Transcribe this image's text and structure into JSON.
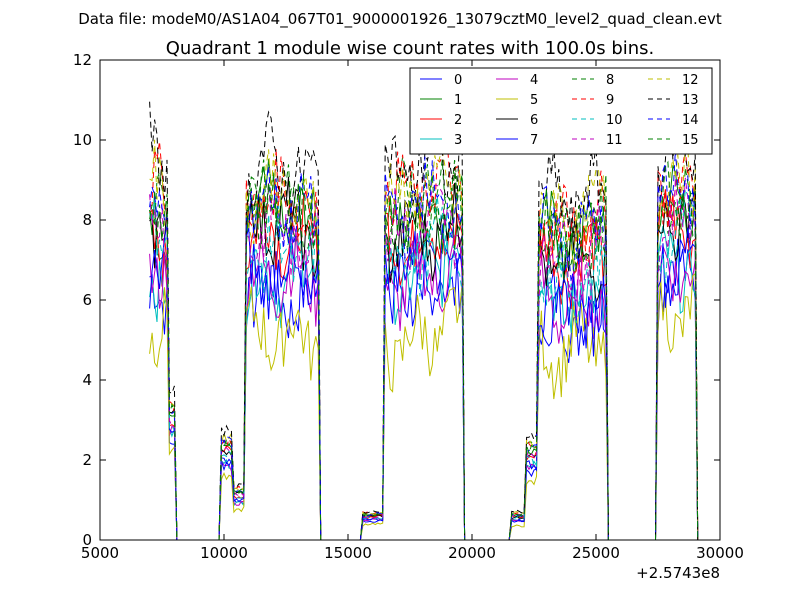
{
  "figure": {
    "supertitle": "Data file: modeM0/AS1A04_067T01_9000001926_13079cztM0_level2_quad_clean.evt"
  },
  "chart_data": {
    "type": "line",
    "title": "Quadrant 1 module wise count rates with 100.0s bins.",
    "xlabel": "",
    "ylabel": "",
    "x_offset_label": "+2.5743e8",
    "xlim": [
      5000,
      30000
    ],
    "ylim": [
      0,
      12
    ],
    "x_ticks": [
      5000,
      10000,
      15000,
      20000,
      25000,
      30000
    ],
    "x_tick_labels": [
      "5000",
      "10000",
      "15000",
      "20000",
      "25000",
      "30000"
    ],
    "y_ticks": [
      0,
      2,
      4,
      6,
      8,
      10,
      12
    ],
    "y_tick_labels": [
      "0",
      "2",
      "4",
      "6",
      "8",
      "10",
      "12"
    ],
    "grid": false,
    "legend_location": "upper right",
    "legend_columns": 4,
    "approximate": true,
    "series": [
      {
        "name": "0",
        "color": "#0000ff",
        "dash": "solid",
        "base": [
          6.1,
          6.6,
          6.2,
          5.8,
          6.3,
          6.7,
          6.0,
          5.5,
          6.2,
          6.9
        ]
      },
      {
        "name": "1",
        "color": "#008000",
        "dash": "solid",
        "base": [
          8.1,
          7.6,
          8.3,
          7.5,
          7.9,
          8.2,
          7.7,
          7.4,
          8.0,
          8.6
        ]
      },
      {
        "name": "2",
        "color": "#ff0000",
        "dash": "solid",
        "base": [
          7.6,
          7.1,
          7.8,
          7.2,
          7.4,
          7.7,
          7.3,
          6.9,
          7.5,
          8.0
        ]
      },
      {
        "name": "3",
        "color": "#00bfbf",
        "dash": "solid",
        "base": [
          6.8,
          6.2,
          6.5,
          6.8,
          6.4,
          7.2,
          6.6,
          5.9,
          6.6,
          6.9
        ]
      },
      {
        "name": "4",
        "color": "#bf00bf",
        "dash": "solid",
        "base": [
          7.0,
          6.0,
          6.7,
          6.4,
          6.3,
          6.8,
          6.2,
          5.8,
          6.4,
          7.0
        ]
      },
      {
        "name": "5",
        "color": "#bfbf00",
        "dash": "solid",
        "base": [
          5.5,
          5.2,
          5.2,
          5.0,
          4.8,
          5.4,
          4.6,
          4.8,
          5.2,
          5.9
        ]
      },
      {
        "name": "6",
        "color": "#000000",
        "dash": "solid",
        "base": [
          7.8,
          7.5,
          8.1,
          7.3,
          7.5,
          7.9,
          7.2,
          6.8,
          7.7,
          8.3
        ]
      },
      {
        "name": "7",
        "color": "#0000ff",
        "dash": "solid",
        "base": [
          6.7,
          6.4,
          6.8,
          6.0,
          6.6,
          7.0,
          6.1,
          5.6,
          6.5,
          7.2
        ]
      },
      {
        "name": "8",
        "color": "#008000",
        "dash": "dashed",
        "base": [
          8.5,
          8.0,
          8.6,
          7.8,
          8.3,
          8.7,
          8.0,
          7.6,
          8.2,
          8.8
        ]
      },
      {
        "name": "9",
        "color": "#ff0000",
        "dash": "dashed",
        "base": [
          8.8,
          8.1,
          8.7,
          8.0,
          8.6,
          9.0,
          8.1,
          7.8,
          8.5,
          9.1
        ]
      },
      {
        "name": "10",
        "color": "#00bfbf",
        "dash": "dashed",
        "base": [
          7.4,
          6.9,
          7.3,
          6.8,
          7.0,
          7.5,
          6.8,
          6.4,
          7.1,
          7.7
        ]
      },
      {
        "name": "11",
        "color": "#bf00bf",
        "dash": "dashed",
        "base": [
          7.9,
          7.3,
          7.9,
          7.1,
          7.6,
          8.0,
          7.4,
          7.0,
          7.7,
          8.2
        ]
      },
      {
        "name": "12",
        "color": "#bfbf00",
        "dash": "dashed",
        "base": [
          8.9,
          8.3,
          8.8,
          8.1,
          8.6,
          8.9,
          8.4,
          8.0,
          8.7,
          9.3
        ]
      },
      {
        "name": "13",
        "color": "#000000",
        "dash": "dashed",
        "base": [
          9.8,
          8.7,
          9.5,
          8.6,
          9.2,
          9.5,
          8.9,
          8.4,
          9.2,
          10.0
        ]
      },
      {
        "name": "14",
        "color": "#0000ff",
        "dash": "dashed",
        "base": [
          8.6,
          7.9,
          8.5,
          7.7,
          8.2,
          8.6,
          7.8,
          7.5,
          8.3,
          8.9
        ]
      },
      {
        "name": "15",
        "color": "#008000",
        "dash": "dashed",
        "base": [
          8.3,
          7.8,
          8.4,
          7.6,
          8.1,
          8.5,
          7.9,
          7.4,
          8.1,
          8.7
        ]
      }
    ],
    "x_grid": {
      "start": 7000,
      "end": 29100,
      "step": 100
    },
    "observation_windows": [
      {
        "start": 7000,
        "end": 7800,
        "level": 1.0
      },
      {
        "start": 7800,
        "end": 8100,
        "level": 0.4
      },
      {
        "start": 9900,
        "end": 10400,
        "level": 0.3
      },
      {
        "start": 10400,
        "end": 10900,
        "level": 0.15
      },
      {
        "start": 10900,
        "end": 13900,
        "level": 1.0
      },
      {
        "start": 15600,
        "end": 16500,
        "level": 0.08
      },
      {
        "start": 16500,
        "end": 19700,
        "level": 1.0
      },
      {
        "start": 21600,
        "end": 22200,
        "level": 0.08
      },
      {
        "start": 22200,
        "end": 22700,
        "level": 0.3
      },
      {
        "start": 22700,
        "end": 25500,
        "level": 1.0
      },
      {
        "start": 27500,
        "end": 29100,
        "level": 1.0
      }
    ]
  }
}
